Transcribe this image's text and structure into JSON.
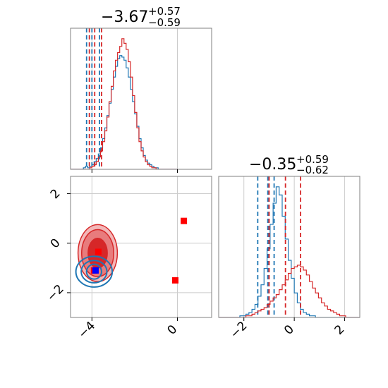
{
  "chart_data": [
    {
      "type": "histogram",
      "panel": "top-left marginal",
      "title": {
        "value": "−3.67",
        "plus": "+0.57",
        "minus": "−0.59"
      },
      "xlim": [
        -5,
        1.6
      ],
      "xticks": [
        -4,
        0
      ],
      "grid": true,
      "series": [
        {
          "color": "#1f77b4",
          "bin_start": -5.0,
          "bin_width": 0.1,
          "counts": [
            0,
            0,
            0,
            0,
            0,
            0,
            1,
            2,
            1,
            2,
            3,
            5,
            7,
            10,
            14,
            20,
            27,
            35,
            43,
            52,
            60,
            67,
            72,
            74,
            73,
            71,
            66,
            60,
            52,
            44,
            36,
            28,
            20,
            14,
            9,
            6,
            4,
            3,
            2,
            1,
            1,
            0,
            0,
            0,
            0,
            0,
            0,
            0,
            0,
            0
          ],
          "quantile_lines": [
            -4.25,
            -4.0,
            -3.65
          ]
        },
        {
          "color": "#d62728",
          "bin_start": -5.0,
          "bin_width": 0.1,
          "counts": [
            0,
            0,
            0,
            0,
            0,
            0,
            0,
            0,
            0,
            1,
            2,
            3,
            5,
            8,
            12,
            18,
            25,
            34,
            44,
            54,
            64,
            71,
            76,
            80,
            85,
            82,
            78,
            70,
            60,
            48,
            37,
            27,
            18,
            12,
            8,
            5,
            3,
            2,
            1,
            1,
            0,
            0,
            0,
            0,
            0,
            0,
            0,
            0,
            0,
            0
          ],
          "quantile_lines": [
            -4.12,
            -3.87,
            -3.55
          ]
        }
      ]
    },
    {
      "type": "histogram",
      "panel": "bottom-right marginal",
      "title": {
        "value": "−0.35",
        "plus": "+0.59",
        "minus": "−0.62"
      },
      "xlim": [
        -3.0,
        2.6
      ],
      "xticks": [
        -2,
        0,
        2
      ],
      "grid": true,
      "series": [
        {
          "color": "#1f77b4",
          "bin_start": -3.0,
          "bin_width": 0.12,
          "counts": [
            0,
            0,
            0,
            0,
            0,
            0,
            0,
            1,
            1,
            2,
            3,
            5,
            8,
            13,
            20,
            30,
            42,
            57,
            70,
            80,
            75,
            62,
            48,
            35,
            24,
            15,
            9,
            5,
            3,
            2,
            1,
            1,
            0,
            0,
            0,
            0,
            0,
            0,
            0,
            0,
            0,
            0,
            0,
            0,
            0,
            0,
            0
          ],
          "quantile_lines": [
            -1.45,
            -1.05,
            -0.8
          ]
        },
        {
          "color": "#d62728",
          "bin_start": -3.0,
          "bin_width": 0.12,
          "counts": [
            0,
            0,
            0,
            0,
            0,
            0,
            0,
            0,
            0,
            1,
            1,
            2,
            3,
            4,
            5,
            6,
            8,
            10,
            12,
            14,
            17,
            20,
            23,
            27,
            30,
            31,
            32,
            31,
            29,
            26,
            22,
            18,
            15,
            12,
            9,
            7,
            5,
            4,
            3,
            2,
            1,
            1,
            0,
            0,
            0,
            0,
            0
          ],
          "quantile_lines": [
            -1.0,
            -0.35,
            0.25
          ]
        }
      ]
    },
    {
      "type": "contour",
      "panel": "bottom-left joint",
      "xlim": [
        -5,
        1.6
      ],
      "ylim": [
        -3,
        2.7
      ],
      "xticks": [
        -4,
        0
      ],
      "yticks": [
        -2,
        0,
        2
      ],
      "xtick_labels": [
        "−4",
        "0"
      ],
      "ytick_labels": [
        "−2",
        "0",
        "2"
      ],
      "grid": true,
      "red_contours": {
        "color": "#d62728",
        "center": [
          -3.73,
          -0.4
        ],
        "levels": [
          {
            "rx": 0.45,
            "ry": 0.6,
            "fill": "#d62728"
          },
          {
            "rx": 0.75,
            "ry": 0.95,
            "fill": "#e87c7d"
          },
          {
            "rx": 0.92,
            "ry": 1.15,
            "fill": "#f2b7b8"
          }
        ]
      },
      "blue_contours": {
        "color": "#1f77b4",
        "center": [
          -3.9,
          -1.15
        ],
        "levels": [
          {
            "rx": 0.35,
            "ry": 0.3
          },
          {
            "rx": 0.6,
            "ry": 0.45
          },
          {
            "rx": 0.85,
            "ry": 0.62
          }
        ]
      },
      "points": [
        {
          "x": 0.3,
          "y": 0.9,
          "color": "#ff0000",
          "marker": "square"
        },
        {
          "x": -0.1,
          "y": -1.5,
          "color": "#ff0000",
          "marker": "square"
        },
        {
          "x": -3.7,
          "y": -0.35,
          "color": "#ff0000",
          "marker": "square"
        },
        {
          "x": -3.9,
          "y": -1.1,
          "color": "#ff0000",
          "marker": "square"
        },
        {
          "x": -3.83,
          "y": -1.1,
          "color": "#0000ff",
          "marker": "square"
        }
      ]
    }
  ]
}
